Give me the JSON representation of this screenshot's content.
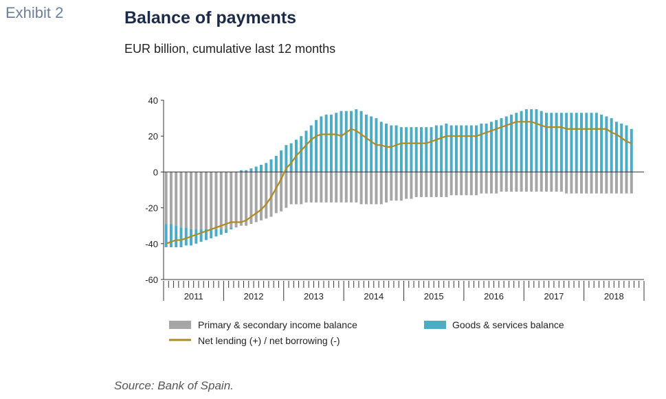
{
  "exhibit": "Exhibit 2",
  "title": "Balance of payments",
  "subtitle": "EUR billion, cumulative last 12 months",
  "source": "Source: Bank of Spain.",
  "colors": {
    "income": "#a6a6a6",
    "goods": "#4bacc6",
    "net": "#b08a1e"
  },
  "chart_data": {
    "type": "bar",
    "stacked": true,
    "ylim": [
      -60,
      40
    ],
    "yticks": [
      40,
      20,
      0,
      -20,
      -40,
      -60
    ],
    "years": [
      "2011",
      "2012",
      "2013",
      "2014",
      "2015",
      "2016",
      "2017",
      "2018"
    ],
    "period_start": "2011-01",
    "period_end": "2018-10",
    "legend": {
      "income": "Primary & secondary income balance",
      "goods": "Goods & services balance",
      "net": "Net lending (+) / net borrowing (-)"
    },
    "series": [
      {
        "name": "Primary & secondary income balance",
        "kind": "bar",
        "values": [
          -29,
          -29,
          -30,
          -31,
          -31,
          -32,
          -32,
          -32,
          -32,
          -32,
          -32,
          -32,
          -32,
          -31,
          -31,
          -30,
          -30,
          -29,
          -28,
          -27,
          -26,
          -25,
          -23,
          -22,
          -20,
          -18,
          -18,
          -18,
          -17,
          -17,
          -17,
          -17,
          -17,
          -17,
          -17,
          -17,
          -17,
          -17,
          -17,
          -18,
          -18,
          -18,
          -18,
          -18,
          -17,
          -16,
          -16,
          -16,
          -15,
          -15,
          -14,
          -14,
          -14,
          -14,
          -14,
          -14,
          -14,
          -13,
          -13,
          -13,
          -13,
          -13,
          -13,
          -12,
          -12,
          -12,
          -12,
          -11,
          -11,
          -11,
          -11,
          -11,
          -11,
          -11,
          -11,
          -11,
          -11,
          -11,
          -11,
          -11,
          -12,
          -12,
          -12,
          -12,
          -12,
          -12,
          -12,
          -12,
          -12,
          -12,
          -12,
          -12,
          -12,
          -12
        ]
      },
      {
        "name": "Goods & services balance",
        "kind": "bar",
        "values": [
          -13,
          -13,
          -12,
          -11,
          -10,
          -9,
          -8,
          -7,
          -6,
          -5,
          -4,
          -3,
          -2,
          -1,
          0,
          1,
          1,
          2,
          3,
          4,
          5,
          7,
          9,
          12,
          15,
          16,
          18,
          20,
          23,
          26,
          29,
          31,
          32,
          32,
          33,
          34,
          34,
          34,
          35,
          34,
          32,
          31,
          30,
          28,
          27,
          26,
          26,
          25,
          25,
          25,
          25,
          25,
          25,
          25,
          26,
          26,
          27,
          26,
          26,
          26,
          26,
          26,
          26,
          27,
          27,
          28,
          29,
          30,
          31,
          32,
          33,
          34,
          35,
          35,
          35,
          34,
          33,
          33,
          33,
          33,
          33,
          33,
          33,
          33,
          33,
          33,
          33,
          32,
          31,
          30,
          28,
          27,
          26,
          24
        ]
      },
      {
        "name": "Net lending (+) / net borrowing (-)",
        "kind": "line",
        "values": [
          -40,
          -39,
          -38,
          -38,
          -37,
          -36,
          -35,
          -34,
          -33,
          -32,
          -31,
          -30,
          -29,
          -28,
          -28,
          -28,
          -27,
          -25,
          -23,
          -21,
          -18,
          -14,
          -9,
          -4,
          2,
          5,
          9,
          12,
          15,
          18,
          20,
          21,
          21,
          21,
          21,
          20,
          22,
          24,
          23,
          21,
          19,
          17,
          15,
          15,
          14,
          14,
          15,
          16,
          16,
          16,
          16,
          16,
          16,
          17,
          18,
          19,
          20,
          20,
          20,
          20,
          20,
          20,
          20,
          21,
          22,
          23,
          24,
          25,
          26,
          27,
          28,
          28,
          28,
          28,
          27,
          26,
          25,
          25,
          25,
          25,
          24,
          24,
          24,
          24,
          24,
          24,
          24,
          24,
          24,
          22,
          21,
          19,
          17,
          16
        ]
      }
    ]
  }
}
